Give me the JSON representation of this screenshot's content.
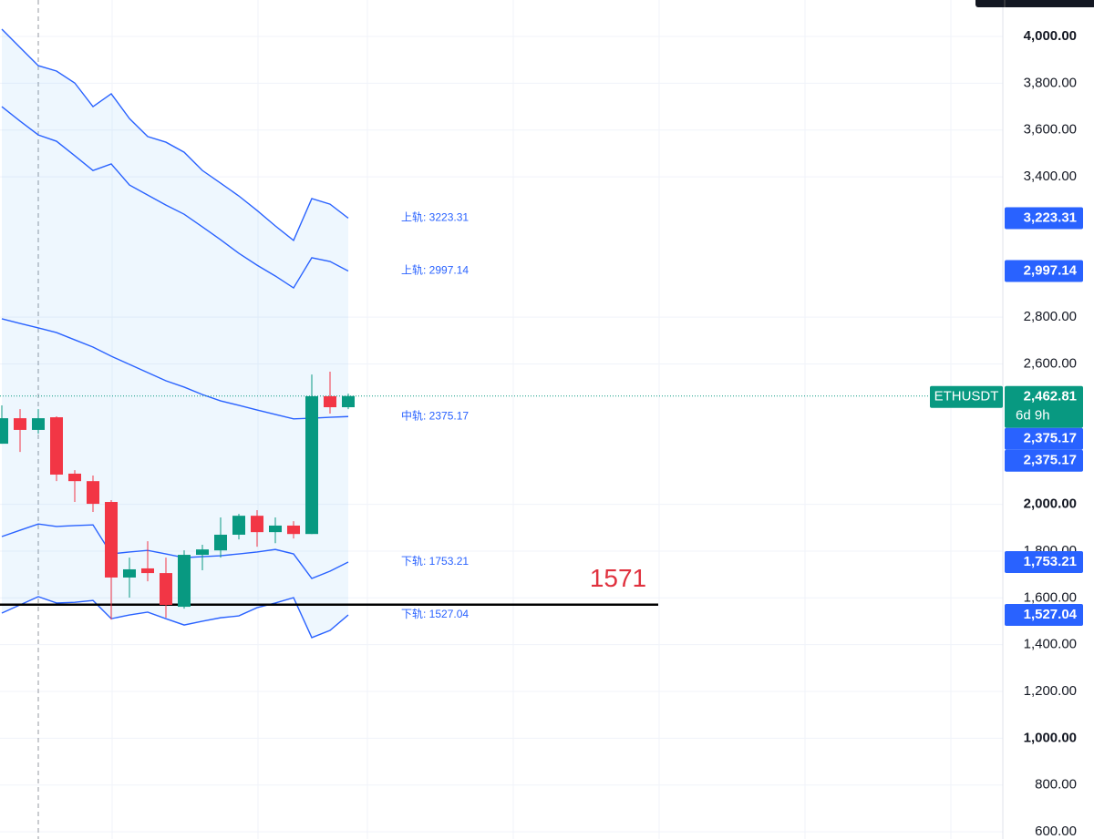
{
  "chart_data": {
    "type": "candlestick",
    "ylim": [
      569.2,
      4155.8
    ],
    "yticks": [
      {
        "value": 600,
        "label": "600.00"
      },
      {
        "value": 800,
        "label": "800.00"
      },
      {
        "value": 1000,
        "label": "1,000.00"
      },
      {
        "value": 1200,
        "label": "1,200.00"
      },
      {
        "value": 1400,
        "label": "1,400.00"
      },
      {
        "value": 1600,
        "label": "1,600.00"
      },
      {
        "value": 1800,
        "label": "1,800.00"
      },
      {
        "value": 2000,
        "label": "2,000.00"
      },
      {
        "value": 2600,
        "label": "2,600.00"
      },
      {
        "value": 2800,
        "label": "2,800.00"
      },
      {
        "value": 3400,
        "label": "3,400.00"
      },
      {
        "value": 3600,
        "label": "3,600.00"
      },
      {
        "value": 3800,
        "label": "3,800.00"
      },
      {
        "value": 4000,
        "label": "4,000.00"
      }
    ],
    "grid": true,
    "up_color": "#089981",
    "down_color": "#f23645",
    "open": [
      2259,
      2368,
      2318,
      2372,
      2131,
      2099,
      2010,
      1687,
      1726,
      1706,
      1562,
      1784,
      1803,
      1870,
      1951,
      1881,
      1909,
      1873,
      2462,
      2415
    ],
    "high": [
      2423,
      2407,
      2407,
      2376,
      2146,
      2123,
      2018,
      1772,
      1842,
      1772,
      1803,
      1827,
      1944,
      1959,
      1975,
      1944,
      1928,
      2555,
      2567,
      2473
    ],
    "low": [
      2259,
      2224,
      2302,
      2099,
      2010,
      1967,
      1507,
      1601,
      1671,
      1515,
      1554,
      1718,
      1772,
      1850,
      1819,
      1834,
      1854,
      1873,
      2388,
      2407
    ],
    "close": [
      2368,
      2318,
      2368,
      2127,
      2099,
      2002,
      1687,
      1722,
      1706,
      1570,
      1784,
      1807,
      1870,
      1951,
      1881,
      1909,
      1873,
      2462,
      2415,
      2462.81
    ],
    "bands": [
      {
        "label": "上轨: 3223.31",
        "color": "#2962ff",
        "values": [
          4031,
          3953,
          3875,
          3852,
          3801,
          3700,
          3755,
          3649,
          3572,
          3548,
          3505,
          3427,
          3373,
          3318,
          3256,
          3190,
          3128,
          3307,
          3283,
          3223.31
        ]
      },
      {
        "label": "上轨: 2997.14",
        "color": "#2962ff",
        "values": [
          3700,
          3638,
          3579,
          3552,
          3490,
          3427,
          3455,
          3365,
          3322,
          3279,
          3240,
          3186,
          3131,
          3073,
          3022,
          2976,
          2925,
          3054,
          3038,
          2997.14
        ]
      },
      {
        "label": "中轨: 2375.17",
        "color": "#2962ff",
        "values": [
          2793,
          2773,
          2754,
          2734,
          2703,
          2672,
          2633,
          2598,
          2563,
          2528,
          2501,
          2469,
          2442,
          2423,
          2403,
          2384,
          2365,
          2368,
          2372,
          2375.17
        ]
      },
      {
        "label": "下轨: 1753.21",
        "color": "#2962ff",
        "values": [
          1862,
          1889,
          1916,
          1905,
          1909,
          1912,
          1788,
          1796,
          1803,
          1788,
          1772,
          1776,
          1780,
          1788,
          1796,
          1807,
          1788,
          1683,
          1714,
          1753.21
        ]
      },
      {
        "label": "下轨: 1527.04",
        "color": "#2962ff",
        "values": [
          1535,
          1570,
          1605,
          1578,
          1581,
          1589,
          1511,
          1527,
          1539,
          1511,
          1484,
          1500,
          1515,
          1523,
          1558,
          1578,
          1601,
          1430,
          1461,
          1527.04
        ]
      }
    ],
    "band_fill": "rgba(33,150,243,0.08)",
    "last_price": {
      "symbol": "ETHUSDT",
      "label": "2,462.81",
      "value": 2462.81,
      "countdown": "6d 9h",
      "color": "#089981"
    },
    "price_tags": [
      {
        "label": "3,223.31",
        "value": 3223.31,
        "color": "#2962ff"
      },
      {
        "label": "2,997.14",
        "value": 2997.14,
        "color": "#2962ff"
      },
      {
        "label": "2,375.17",
        "value": 2375.17,
        "color": "#2962ff"
      },
      {
        "label": "2,375.17",
        "value": 2375.17,
        "color": "#2962ff"
      },
      {
        "label": "1,753.21",
        "value": 1753.21,
        "color": "#2962ff"
      },
      {
        "label": "1,527.04",
        "value": 1527.04,
        "color": "#2962ff"
      }
    ],
    "hline": {
      "value": 1571,
      "label": "1571",
      "color": "#000000",
      "label_color": "#e0323f"
    }
  }
}
